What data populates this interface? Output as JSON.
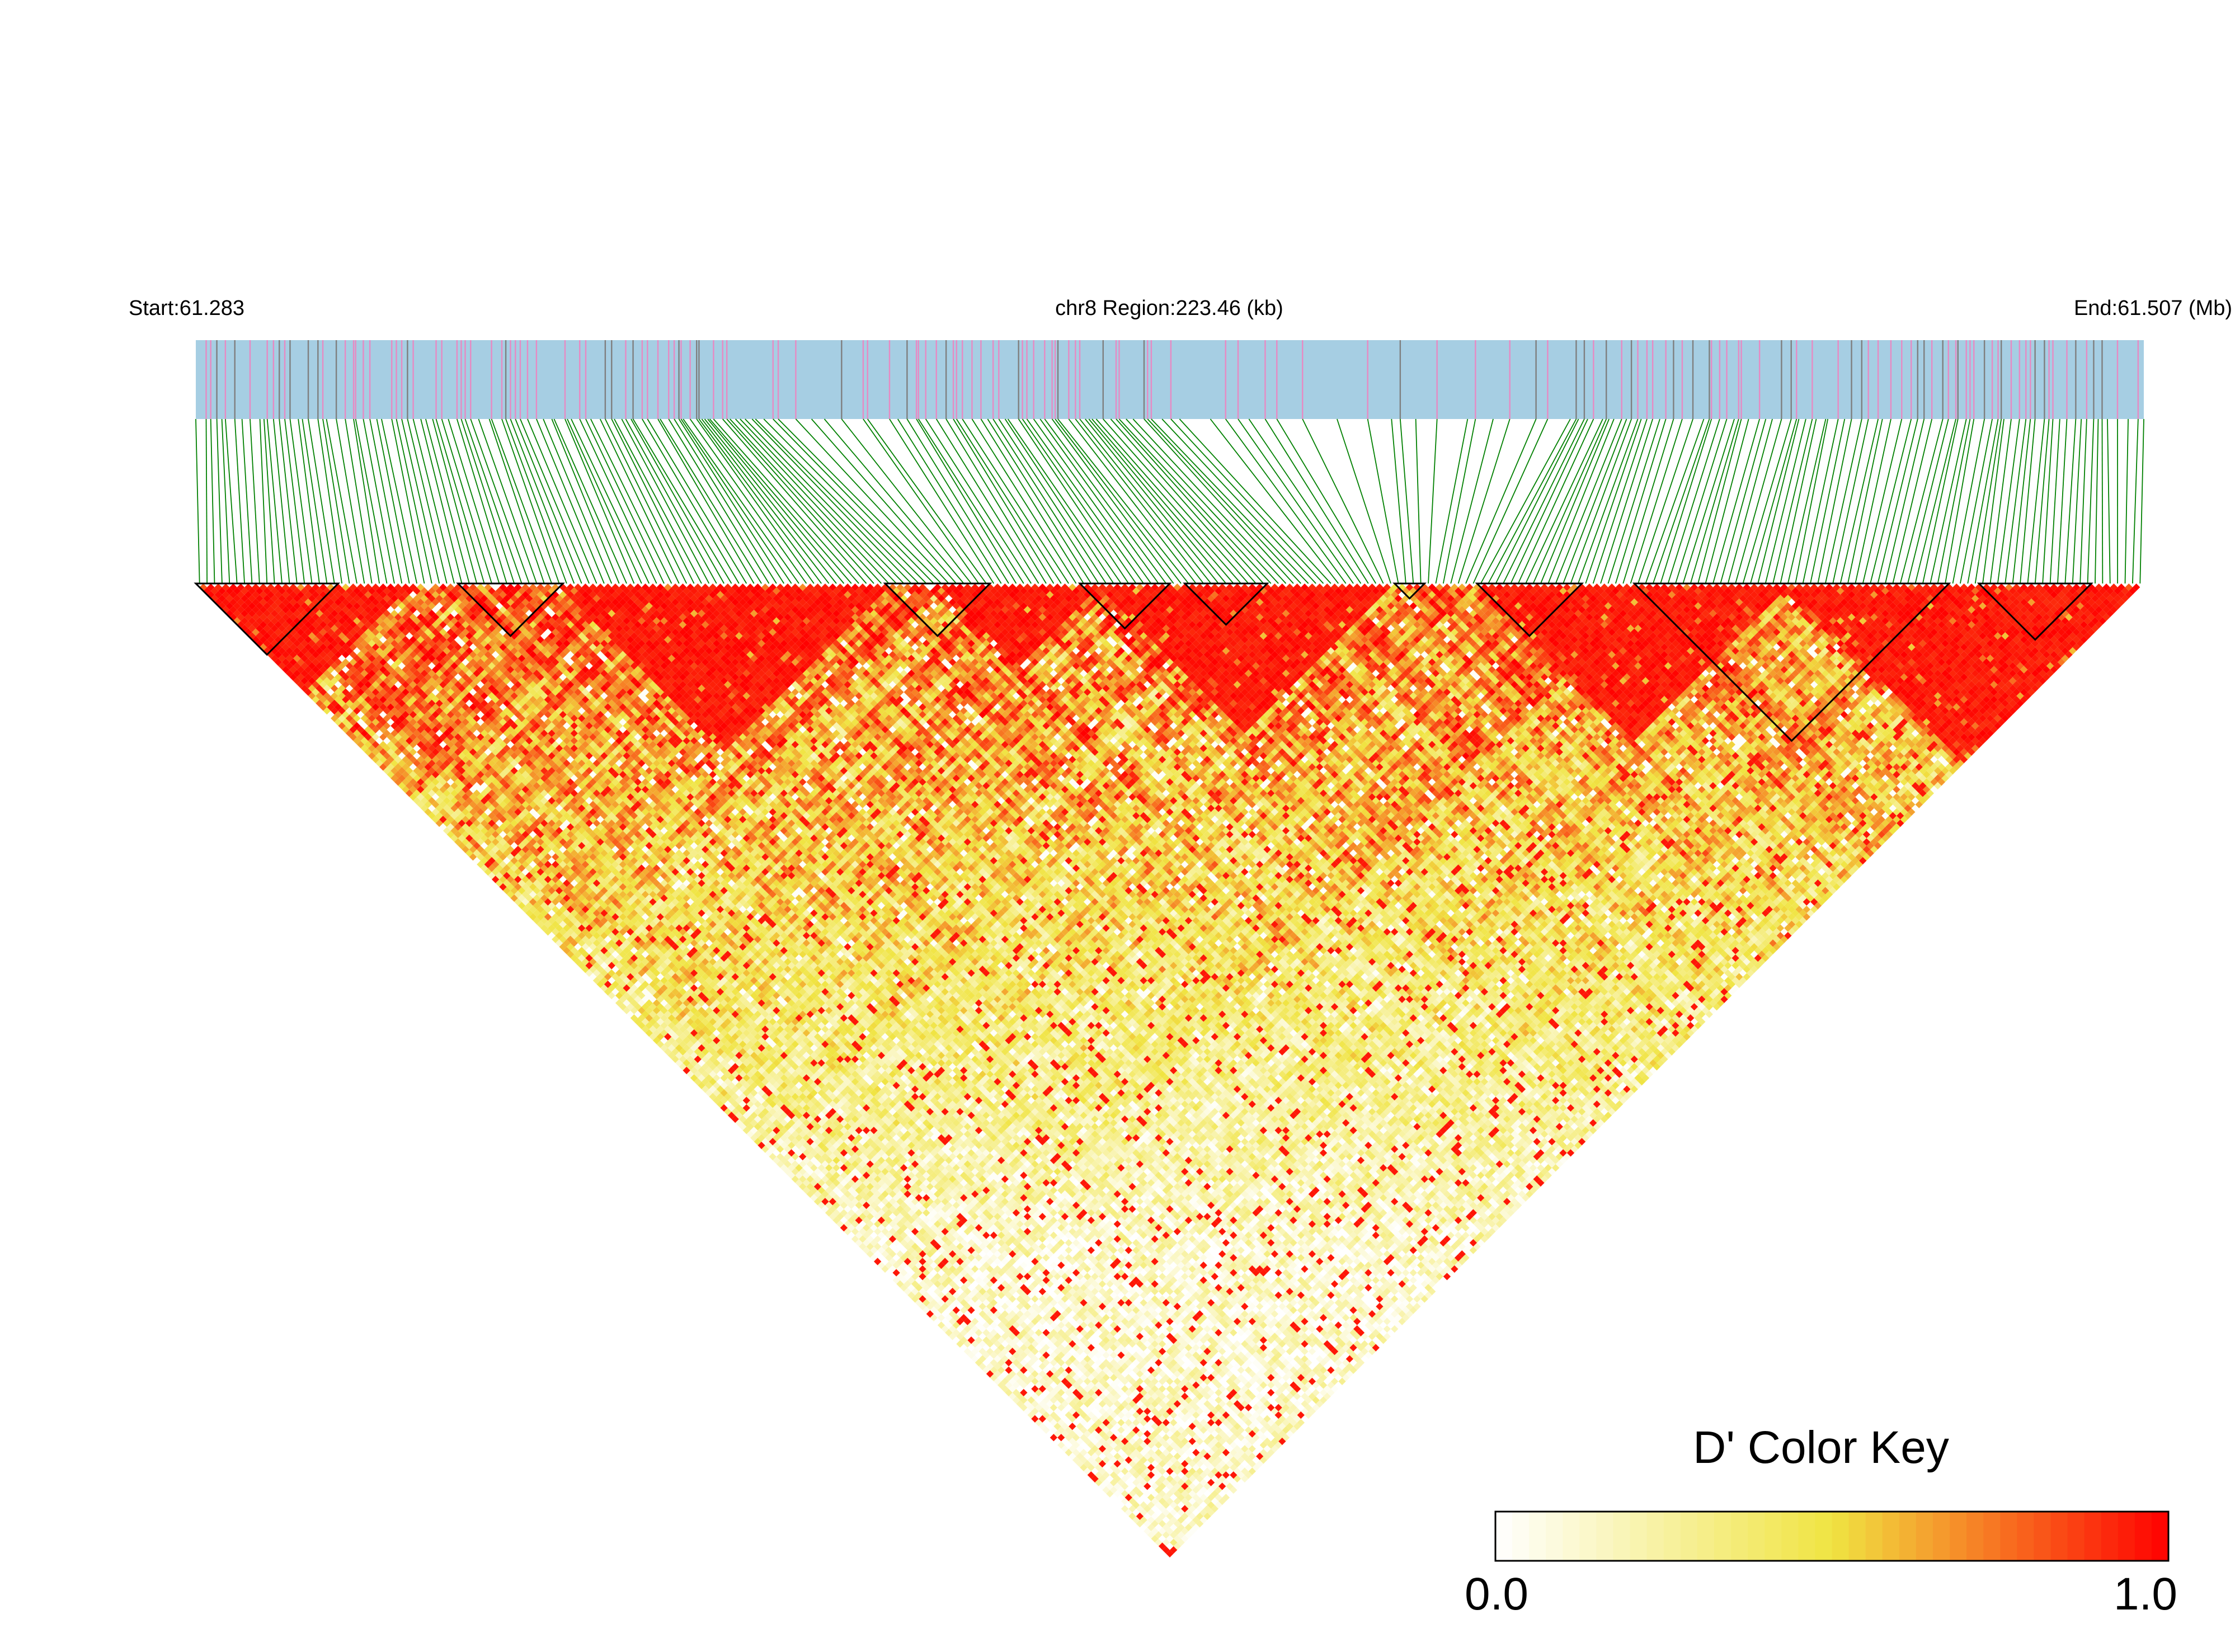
{
  "header": {
    "start_label": "Start:61.283",
    "region_label": "chr8 Region:223.46 (kb)",
    "end_label": "End:61.507 (Mb)"
  },
  "colors": {
    "track_background": "#a6cee3",
    "snp_tick_pink": "#e78ac3",
    "snp_tick_grey": "#7f7f7f",
    "connector_green": "#008000",
    "high_ld": "#ff0000",
    "mid_ld": "#f0e442",
    "low_ld": "#ffffff",
    "block_outline": "#000000"
  },
  "chart_data": {
    "type": "heatmap",
    "subtype": "linkage-disequilibrium-triangle",
    "metric": "D'",
    "region": {
      "chromosome": "chr8",
      "start_mb": 61.283,
      "end_mb": 61.507,
      "length_kb": 223.46
    },
    "value_range": [
      0.0,
      1.0
    ],
    "snp_count_approx": 260,
    "high_ld_regions_mb": [
      [
        61.283,
        61.304
      ],
      [
        61.318,
        61.345
      ],
      [
        61.35,
        61.375
      ],
      [
        61.375,
        61.413
      ],
      [
        61.44,
        61.47
      ],
      [
        61.47,
        61.507
      ]
    ],
    "haplotype_blocks_mb": [
      [
        61.283,
        61.296
      ],
      [
        61.309,
        61.318
      ],
      [
        61.345,
        61.36
      ],
      [
        61.373,
        61.381
      ],
      [
        61.382,
        61.389
      ],
      [
        61.416,
        61.424
      ],
      [
        61.44,
        61.449
      ],
      [
        61.455,
        61.488
      ],
      [
        61.491,
        61.501
      ]
    ],
    "legend": {
      "title": "D' Color Key",
      "min_label": "0.0",
      "max_label": "1.0",
      "placement": "bottom-right",
      "stops": [
        {
          "value": 0.0,
          "color": "#ffffff"
        },
        {
          "value": 0.5,
          "color": "#f0e442"
        },
        {
          "value": 1.0,
          "color": "#ff0000"
        }
      ]
    }
  }
}
